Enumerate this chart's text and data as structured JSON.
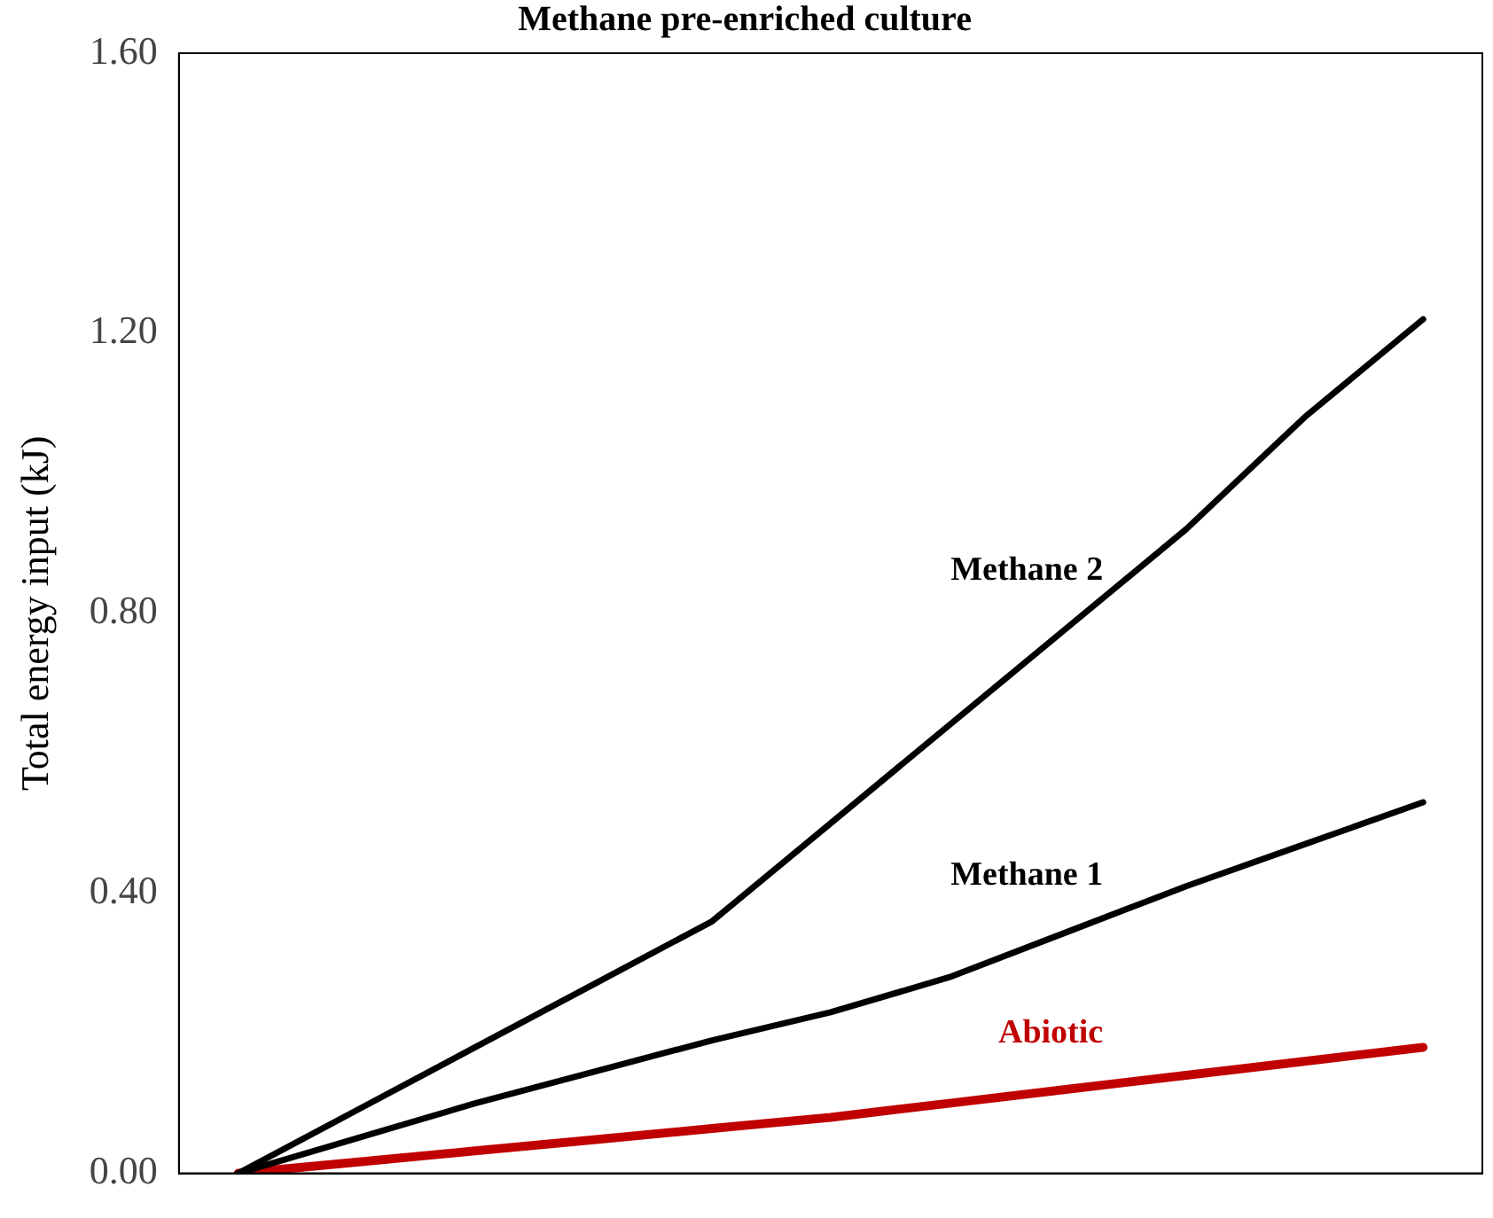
{
  "chart_data": {
    "type": "line",
    "title": "Methane pre-enriched culture",
    "ylabel": "Total energy input (kJ)",
    "categories": [
      null,
      null,
      null,
      null,
      null,
      null,
      null,
      null,
      null,
      null,
      null
    ],
    "series": [
      {
        "name": "Methane 2",
        "color": "#000000",
        "values": [
          0,
          0.09,
          0.18,
          0.27,
          0.36,
          0.5,
          0.64,
          0.78,
          0.92,
          1.08,
          1.22
        ]
      },
      {
        "name": "Methane 1",
        "color": "#000000",
        "values": [
          0,
          0.05,
          0.1,
          0.145,
          0.19,
          0.23,
          0.28,
          0.345,
          0.41,
          0.47,
          0.53
        ]
      },
      {
        "name": "Abiotic",
        "color": "#c00000",
        "values": [
          0,
          0.016,
          0.032,
          0.048,
          0.064,
          0.08,
          0.1,
          0.12,
          0.14,
          0.16,
          0.18
        ]
      }
    ],
    "ylim": [
      0,
      1.6
    ],
    "yticks": [
      {
        "value": 0,
        "label": "0.00"
      },
      {
        "value": 0.4,
        "label": "0.40"
      },
      {
        "value": 0.8,
        "label": "0.80"
      },
      {
        "value": 1.2,
        "label": "1.20"
      },
      {
        "value": 1.6,
        "label": "1.60"
      }
    ],
    "grid": false,
    "legend": false,
    "marker": "none",
    "line_style": "solid"
  }
}
